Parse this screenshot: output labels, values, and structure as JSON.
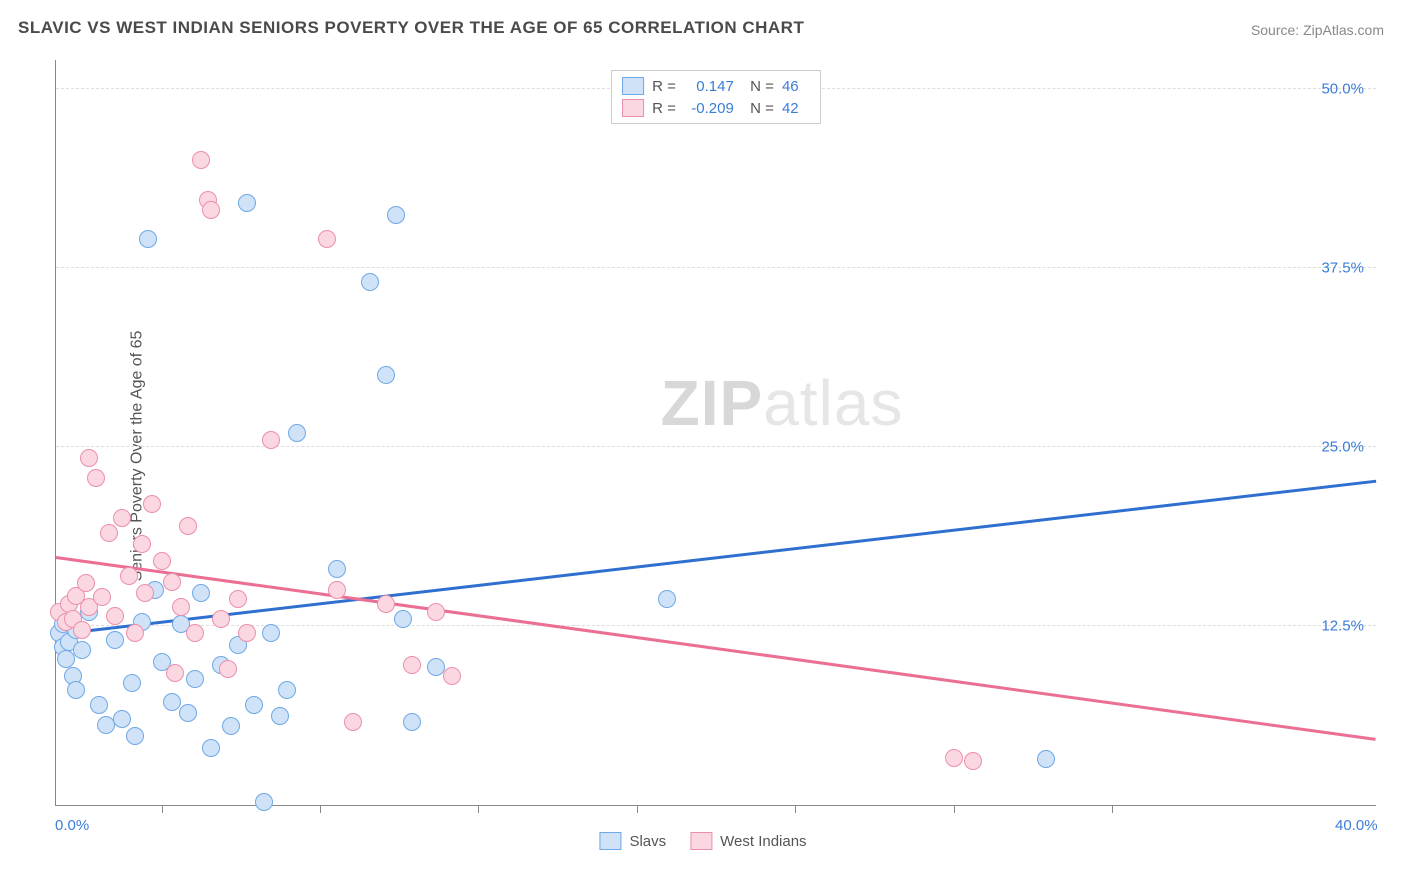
{
  "title": "SLAVIC VS WEST INDIAN SENIORS POVERTY OVER THE AGE OF 65 CORRELATION CHART",
  "source": "Source: ZipAtlas.com",
  "y_axis_label": "Seniors Poverty Over the Age of 65",
  "watermark_bold": "ZIP",
  "watermark_light": "atlas",
  "chart": {
    "type": "scatter",
    "xlim": [
      0,
      40
    ],
    "ylim": [
      0,
      52
    ],
    "x_ticks": [
      0,
      40
    ],
    "x_tick_labels": [
      "0.0%",
      "40.0%"
    ],
    "x_minor_ticks": [
      3.2,
      8,
      12.8,
      17.6,
      22.4,
      27.2,
      32
    ],
    "y_ticks": [
      12.5,
      25.0,
      37.5,
      50.0
    ],
    "y_tick_labels": [
      "12.5%",
      "25.0%",
      "37.5%",
      "50.0%"
    ],
    "grid_color": "#dddddd",
    "axis_color": "#888888",
    "background_color": "#ffffff",
    "marker_radius": 8,
    "marker_border_width": 1.5,
    "series": [
      {
        "name": "Slavs",
        "fill": "#cfe2f7",
        "stroke": "#6fa8e6",
        "r_value": "0.147",
        "n_value": "46",
        "trend": {
          "x1": 0,
          "y1": 11.8,
          "x2": 40,
          "y2": 22.5,
          "color": "#2f6fd0",
          "width": 3
        },
        "points": [
          [
            0.1,
            12.0
          ],
          [
            0.2,
            11.0
          ],
          [
            0.2,
            12.6
          ],
          [
            0.3,
            10.2
          ],
          [
            0.3,
            13.0
          ],
          [
            0.4,
            11.4
          ],
          [
            0.5,
            9.0
          ],
          [
            0.6,
            8.0
          ],
          [
            0.6,
            12.2
          ],
          [
            0.8,
            10.8
          ],
          [
            1.0,
            13.5
          ],
          [
            1.3,
            7.0
          ],
          [
            1.5,
            5.6
          ],
          [
            1.8,
            11.5
          ],
          [
            2.0,
            6.0
          ],
          [
            2.3,
            8.5
          ],
          [
            2.4,
            4.8
          ],
          [
            2.6,
            12.8
          ],
          [
            2.8,
            39.5
          ],
          [
            3.0,
            15.0
          ],
          [
            3.2,
            10.0
          ],
          [
            3.5,
            7.2
          ],
          [
            3.8,
            12.6
          ],
          [
            4.0,
            6.4
          ],
          [
            4.2,
            8.8
          ],
          [
            4.4,
            14.8
          ],
          [
            4.7,
            4.0
          ],
          [
            5.0,
            9.8
          ],
          [
            5.3,
            5.5
          ],
          [
            5.5,
            11.2
          ],
          [
            5.8,
            42.0
          ],
          [
            6.0,
            7.0
          ],
          [
            6.3,
            0.2
          ],
          [
            6.5,
            12.0
          ],
          [
            6.8,
            6.2
          ],
          [
            7.0,
            8.0
          ],
          [
            7.3,
            26.0
          ],
          [
            8.5,
            16.5
          ],
          [
            9.5,
            36.5
          ],
          [
            10.0,
            30.0
          ],
          [
            10.3,
            41.2
          ],
          [
            10.5,
            13.0
          ],
          [
            11.5,
            9.6
          ],
          [
            18.5,
            14.4
          ],
          [
            30.0,
            3.2
          ],
          [
            10.8,
            5.8
          ]
        ]
      },
      {
        "name": "West Indians",
        "fill": "#fad7e1",
        "stroke": "#eb8fab",
        "r_value": "-0.209",
        "n_value": "42",
        "trend": {
          "x1": 0,
          "y1": 17.2,
          "x2": 40,
          "y2": 4.5,
          "color": "#eb6e93",
          "width": 3
        },
        "points": [
          [
            0.1,
            13.5
          ],
          [
            0.3,
            12.8
          ],
          [
            0.4,
            14.0
          ],
          [
            0.5,
            13.0
          ],
          [
            0.6,
            14.6
          ],
          [
            0.8,
            12.2
          ],
          [
            0.9,
            15.5
          ],
          [
            1.0,
            24.2
          ],
          [
            1.0,
            13.8
          ],
          [
            1.2,
            22.8
          ],
          [
            1.4,
            14.5
          ],
          [
            1.6,
            19.0
          ],
          [
            1.8,
            13.2
          ],
          [
            2.0,
            20.0
          ],
          [
            2.2,
            16.0
          ],
          [
            2.4,
            12.0
          ],
          [
            2.6,
            18.2
          ],
          [
            2.7,
            14.8
          ],
          [
            2.9,
            21.0
          ],
          [
            3.2,
            17.0
          ],
          [
            3.5,
            15.6
          ],
          [
            3.6,
            9.2
          ],
          [
            3.8,
            13.8
          ],
          [
            4.0,
            19.5
          ],
          [
            4.2,
            12.0
          ],
          [
            4.4,
            45.0
          ],
          [
            4.6,
            42.2
          ],
          [
            4.7,
            41.5
          ],
          [
            5.0,
            13.0
          ],
          [
            5.2,
            9.5
          ],
          [
            5.5,
            14.4
          ],
          [
            5.8,
            12.0
          ],
          [
            6.5,
            25.5
          ],
          [
            8.2,
            39.5
          ],
          [
            8.5,
            15.0
          ],
          [
            9.0,
            5.8
          ],
          [
            10.0,
            14.0
          ],
          [
            10.8,
            9.8
          ],
          [
            11.5,
            13.5
          ],
          [
            27.2,
            3.3
          ],
          [
            27.8,
            3.1
          ],
          [
            12.0,
            9.0
          ]
        ]
      }
    ]
  },
  "legend_bottom": [
    {
      "label": "Slavs",
      "fill": "#cfe2f7",
      "stroke": "#6fa8e6"
    },
    {
      "label": "West Indians",
      "fill": "#fad7e1",
      "stroke": "#eb8fab"
    }
  ]
}
